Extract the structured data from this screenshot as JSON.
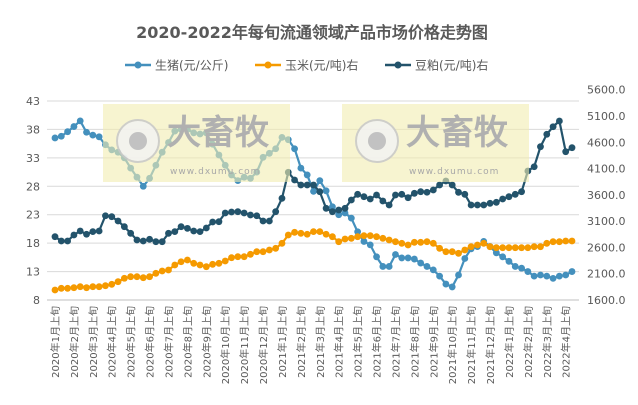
{
  "chart_data": {
    "type": "line",
    "title": "2020-2022年每旬流通领域产品市场价格走势图",
    "legend_position": "top",
    "grid": true,
    "x_tick_labels": [
      "2020年1月上旬",
      "2020年2月上旬",
      "2020年3月上旬",
      "2020年4月上旬",
      "2020年5月上旬",
      "2020年6月上旬",
      "2020年7月上旬",
      "2020年8月上旬",
      "2020年9月上旬",
      "2020年10月上旬",
      "2020年11月上旬",
      "2020年12月上旬",
      "2021年1月上旬",
      "2021年2月上旬",
      "2021年3月上旬",
      "2021年4月上旬",
      "2021年5月上旬",
      "2021年6月上旬",
      "2021年7月上旬",
      "2021年8月上旬",
      "2021年9月上旬",
      "2021年10月上旬",
      "2021年11月上旬",
      "2021年12月上旬",
      "2022年1月上旬",
      "2022年2月上旬",
      "2022年3月上旬",
      "2022年4月上旬"
    ],
    "y_left": {
      "ylim": [
        8,
        43
      ],
      "ticks": [
        "8",
        "13",
        "18",
        "23",
        "28",
        "33",
        "38",
        "43"
      ]
    },
    "y_right": {
      "ylim": [
        1600,
        5600
      ],
      "ticks": [
        "1600.0",
        "2100.0",
        "2600.0",
        "3100.0",
        "3600.0",
        "4100.0",
        "4600.0",
        "5100.0",
        "5600.0"
      ]
    },
    "series": [
      {
        "name": "生猪(元/公斤)",
        "axis": "left",
        "color": "#4490bd",
        "values": [
          36.5,
          36.8,
          37.6,
          38.5,
          39.5,
          37.5,
          37.0,
          36.7,
          35.3,
          34.4,
          34.0,
          33.0,
          31.2,
          29.6,
          28.0,
          29.4,
          31.7,
          34.0,
          35.7,
          37.7,
          38.0,
          38.0,
          37.4,
          37.2,
          37.4,
          35.4,
          33.5,
          31.7,
          30.0,
          29.0,
          29.6,
          29.4,
          30.5,
          33.1,
          33.8,
          34.6,
          36.6,
          36.2,
          34.6,
          31.2,
          30.0,
          27.1,
          29.0,
          27.2,
          24.4,
          23.0,
          23.3,
          22.4,
          20.0,
          18.3,
          17.7,
          15.6,
          13.9,
          13.9,
          16.0,
          15.4,
          15.4,
          15.2,
          14.5,
          13.9,
          13.3,
          12.2,
          10.8,
          10.3,
          12.4,
          15.3,
          17.0,
          17.4,
          18.3,
          17.4,
          16.3,
          15.6,
          14.8,
          13.9,
          13.6,
          13.0,
          12.2,
          12.4,
          12.2,
          11.8,
          12.2,
          12.4,
          13.0
        ]
      },
      {
        "name": "玉米(元/吨)右",
        "axis": "right",
        "color": "#f59a00",
        "values": [
          1790,
          1822,
          1822,
          1834,
          1853,
          1834,
          1853,
          1853,
          1872,
          1898,
          1948,
          2013,
          2043,
          2043,
          2024,
          2043,
          2108,
          2152,
          2170,
          2266,
          2328,
          2361,
          2298,
          2266,
          2234,
          2279,
          2298,
          2342,
          2405,
          2424,
          2424,
          2469,
          2519,
          2519,
          2551,
          2583,
          2678,
          2836,
          2887,
          2868,
          2850,
          2900,
          2900,
          2850,
          2804,
          2709,
          2760,
          2773,
          2804,
          2823,
          2823,
          2804,
          2773,
          2741,
          2709,
          2678,
          2646,
          2697,
          2697,
          2709,
          2678,
          2583,
          2519,
          2519,
          2488,
          2551,
          2614,
          2646,
          2678,
          2614,
          2595,
          2595,
          2595,
          2595,
          2595,
          2595,
          2614,
          2614,
          2678,
          2709,
          2709,
          2722,
          2722
        ]
      },
      {
        "name": "豆粕(元/吨)右",
        "axis": "right",
        "color": "#23536b",
        "values": [
          2804,
          2722,
          2722,
          2836,
          2912,
          2850,
          2900,
          2912,
          3203,
          3185,
          3103,
          2994,
          2868,
          2741,
          2722,
          2754,
          2709,
          2709,
          2868,
          2900,
          2994,
          2963,
          2912,
          2900,
          2970,
          3084,
          3090,
          3255,
          3274,
          3280,
          3255,
          3217,
          3203,
          3103,
          3103,
          3280,
          3534,
          4029,
          3883,
          3788,
          3788,
          3788,
          3660,
          3344,
          3280,
          3312,
          3344,
          3502,
          3610,
          3565,
          3521,
          3597,
          3483,
          3407,
          3597,
          3610,
          3546,
          3629,
          3660,
          3650,
          3692,
          3788,
          3863,
          3788,
          3648,
          3610,
          3407,
          3407,
          3407,
          3439,
          3458,
          3521,
          3565,
          3610,
          3660,
          4054,
          4135,
          4516,
          4752,
          4896,
          5005,
          4421,
          4497
        ]
      }
    ]
  },
  "watermark": {
    "brand": "大畜牧",
    "url": "www.dxumu.com",
    "color": "#f2ecb0"
  }
}
